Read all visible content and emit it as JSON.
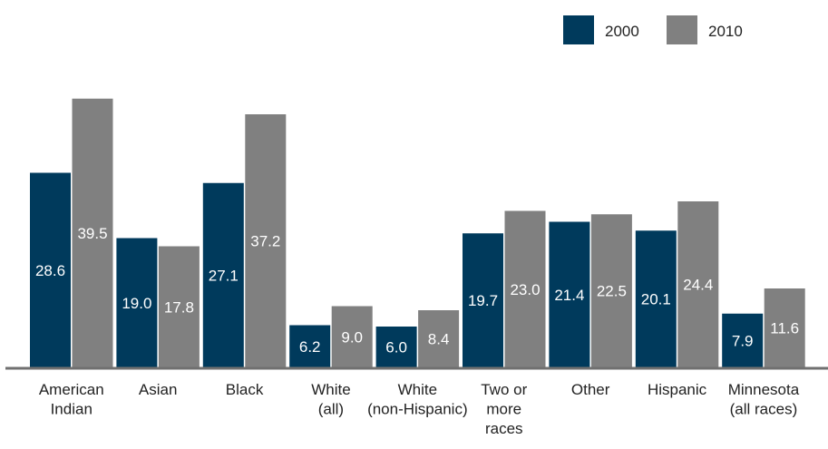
{
  "chart_data": {
    "type": "bar",
    "title": "",
    "xlabel": "",
    "ylabel": "",
    "ylim": [
      0,
      54
    ],
    "grid": false,
    "legend_position": "top-right",
    "categories": [
      [
        "American",
        "Indian"
      ],
      [
        "Asian"
      ],
      [
        "Black"
      ],
      [
        "White",
        "(all)"
      ],
      [
        "White",
        "(non-Hispanic)"
      ],
      [
        "Two or",
        "more",
        "races"
      ],
      [
        "Other"
      ],
      [
        "Hispanic"
      ],
      [
        "Minnesota",
        "(all races)"
      ]
    ],
    "series": [
      {
        "name": "2000",
        "color": "#003a5c",
        "values": [
          28.6,
          19.0,
          27.1,
          6.2,
          6.0,
          19.7,
          21.4,
          20.1,
          7.9
        ],
        "labels": [
          "28.6",
          "19.0",
          "27.1",
          "6.2",
          "6.0",
          "19.7",
          "21.4",
          "20.1",
          "7.9"
        ]
      },
      {
        "name": "2010",
        "color": "#808080",
        "values": [
          39.5,
          17.8,
          37.2,
          9.0,
          8.4,
          23.0,
          22.5,
          24.4,
          11.6
        ],
        "labels": [
          "39.5",
          "17.8",
          "37.2",
          "9.0",
          "8.4",
          "23.0",
          "22.5",
          "24.4",
          "11.6"
        ]
      }
    ],
    "axis_color": "#707070"
  }
}
